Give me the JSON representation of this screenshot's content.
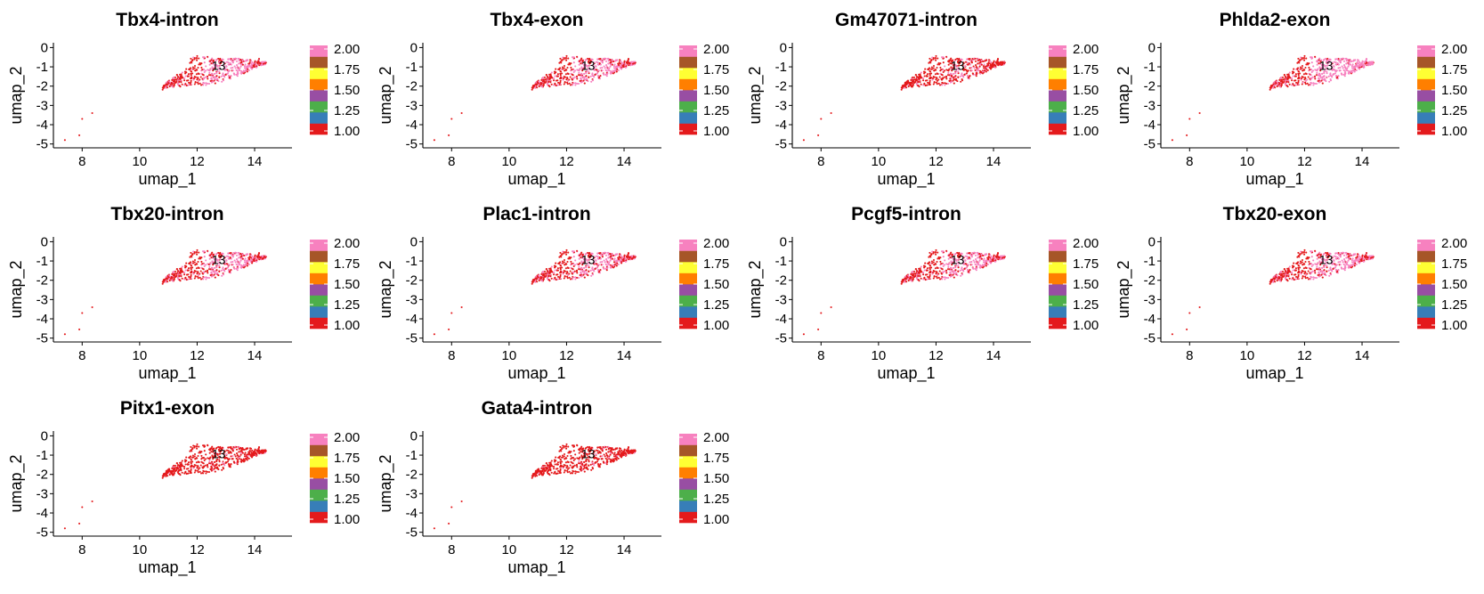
{
  "colors": {
    "palette": [
      "#E41A1C",
      "#377EB8",
      "#4DAF4A",
      "#984EA3",
      "#FF7F00",
      "#FFFF33",
      "#A65628",
      "#F781BF"
    ],
    "text": "#000000",
    "background": "#ffffff"
  },
  "chart_data": [
    {
      "type": "scatter",
      "title": "Tbx4-intron",
      "xlabel": "umap_1",
      "ylabel": "umap_2",
      "xticks": [
        8,
        10,
        12,
        14
      ],
      "yticks": [
        0,
        -1,
        -2,
        -3,
        -4,
        -5
      ],
      "xlim": [
        7.0,
        15.3
      ],
      "ylim": [
        -5.2,
        0.25
      ],
      "cluster_label": "13",
      "colorbar": {
        "ticks": [
          "2.00",
          "1.75",
          "1.50",
          "1.25",
          "1.00"
        ],
        "range": [
          1.0,
          2.0
        ]
      },
      "high_fraction": 0.5,
      "grid": false,
      "legend": "right"
    },
    {
      "type": "scatter",
      "title": "Tbx4-exon",
      "xlabel": "umap_1",
      "ylabel": "umap_2",
      "xticks": [
        8,
        10,
        12,
        14
      ],
      "yticks": [
        0,
        -1,
        -2,
        -3,
        -4,
        -5
      ],
      "xlim": [
        7.0,
        15.3
      ],
      "ylim": [
        -5.2,
        0.25
      ],
      "cluster_label": "13",
      "colorbar": {
        "ticks": [
          "2.00",
          "1.75",
          "1.50",
          "1.25",
          "1.00"
        ],
        "range": [
          1.0,
          2.0
        ]
      },
      "high_fraction": 0.45,
      "grid": false,
      "legend": "right"
    },
    {
      "type": "scatter",
      "title": "Gm47071-intron",
      "xlabel": "umap_1",
      "ylabel": "umap_2",
      "xticks": [
        8,
        10,
        12,
        14
      ],
      "yticks": [
        0,
        -1,
        -2,
        -3,
        -4,
        -5
      ],
      "xlim": [
        7.0,
        15.3
      ],
      "ylim": [
        -5.2,
        0.25
      ],
      "cluster_label": "13",
      "colorbar": {
        "ticks": [
          "2.00",
          "1.75",
          "1.50",
          "1.25",
          "1.00"
        ],
        "range": [
          1.0,
          2.0
        ]
      },
      "high_fraction": 0.18,
      "grid": false,
      "legend": "right"
    },
    {
      "type": "scatter",
      "title": "Phlda2-exon",
      "xlabel": "umap_1",
      "ylabel": "umap_2",
      "xticks": [
        8,
        10,
        12,
        14
      ],
      "yticks": [
        0,
        -1,
        -2,
        -3,
        -4,
        -5
      ],
      "xlim": [
        7.0,
        15.3
      ],
      "ylim": [
        -5.2,
        0.25
      ],
      "cluster_label": "13",
      "colorbar": {
        "ticks": [
          "2.00",
          "1.75",
          "1.50",
          "1.25",
          "1.00"
        ],
        "range": [
          1.0,
          2.0
        ]
      },
      "high_fraction": 0.6,
      "grid": false,
      "legend": "right"
    },
    {
      "type": "scatter",
      "title": "Tbx20-intron",
      "xlabel": "umap_1",
      "ylabel": "umap_2",
      "xticks": [
        8,
        10,
        12,
        14
      ],
      "yticks": [
        0,
        -1,
        -2,
        -3,
        -4,
        -5
      ],
      "xlim": [
        7.0,
        15.3
      ],
      "ylim": [
        -5.2,
        0.25
      ],
      "cluster_label": "13",
      "colorbar": {
        "ticks": [
          "2.00",
          "1.75",
          "1.50",
          "1.25",
          "1.00"
        ],
        "range": [
          1.0,
          2.0
        ]
      },
      "high_fraction": 0.42,
      "grid": false,
      "legend": "right"
    },
    {
      "type": "scatter",
      "title": "Plac1-intron",
      "xlabel": "umap_1",
      "ylabel": "umap_2",
      "xticks": [
        8,
        10,
        12,
        14
      ],
      "yticks": [
        0,
        -1,
        -2,
        -3,
        -4,
        -5
      ],
      "xlim": [
        7.0,
        15.3
      ],
      "ylim": [
        -5.2,
        0.25
      ],
      "cluster_label": "13",
      "colorbar": {
        "ticks": [
          "2.00",
          "1.75",
          "1.50",
          "1.25",
          "1.00"
        ],
        "range": [
          1.0,
          2.0
        ]
      },
      "high_fraction": 0.4,
      "grid": false,
      "legend": "right"
    },
    {
      "type": "scatter",
      "title": "Pcgf5-intron",
      "xlabel": "umap_1",
      "ylabel": "umap_2",
      "xticks": [
        8,
        10,
        12,
        14
      ],
      "yticks": [
        0,
        -1,
        -2,
        -3,
        -4,
        -5
      ],
      "xlim": [
        7.0,
        15.3
      ],
      "ylim": [
        -5.2,
        0.25
      ],
      "cluster_label": "13",
      "colorbar": {
        "ticks": [
          "2.00",
          "1.75",
          "1.50",
          "1.25",
          "1.00"
        ],
        "range": [
          1.0,
          2.0
        ]
      },
      "high_fraction": 0.45,
      "grid": false,
      "legend": "right"
    },
    {
      "type": "scatter",
      "title": "Tbx20-exon",
      "xlabel": "umap_1",
      "ylabel": "umap_2",
      "xticks": [
        8,
        10,
        12,
        14
      ],
      "yticks": [
        0,
        -1,
        -2,
        -3,
        -4,
        -5
      ],
      "xlim": [
        7.0,
        15.3
      ],
      "ylim": [
        -5.2,
        0.25
      ],
      "cluster_label": "13",
      "colorbar": {
        "ticks": [
          "2.00",
          "1.75",
          "1.50",
          "1.25",
          "1.00"
        ],
        "range": [
          1.0,
          2.0
        ]
      },
      "high_fraction": 0.5,
      "grid": false,
      "legend": "right"
    },
    {
      "type": "scatter",
      "title": "Pitx1-exon",
      "xlabel": "umap_1",
      "ylabel": "umap_2",
      "xticks": [
        8,
        10,
        12,
        14
      ],
      "yticks": [
        0,
        -1,
        -2,
        -3,
        -4,
        -5
      ],
      "xlim": [
        7.0,
        15.3
      ],
      "ylim": [
        -5.2,
        0.25
      ],
      "cluster_label": "13",
      "colorbar": {
        "ticks": [
          "2.00",
          "1.75",
          "1.50",
          "1.25",
          "1.00"
        ],
        "range": [
          1.0,
          2.0
        ]
      },
      "high_fraction": 0.05,
      "grid": false,
      "legend": "right"
    },
    {
      "type": "scatter",
      "title": "Gata4-intron",
      "xlabel": "umap_1",
      "ylabel": "umap_2",
      "xticks": [
        8,
        10,
        12,
        14
      ],
      "yticks": [
        0,
        -1,
        -2,
        -3,
        -4,
        -5
      ],
      "xlim": [
        7.0,
        15.3
      ],
      "ylim": [
        -5.2,
        0.25
      ],
      "cluster_label": "13",
      "colorbar": {
        "ticks": [
          "2.00",
          "1.75",
          "1.50",
          "1.25",
          "1.00"
        ],
        "range": [
          1.0,
          2.0
        ]
      },
      "high_fraction": 0.05,
      "grid": false,
      "legend": "right"
    }
  ]
}
